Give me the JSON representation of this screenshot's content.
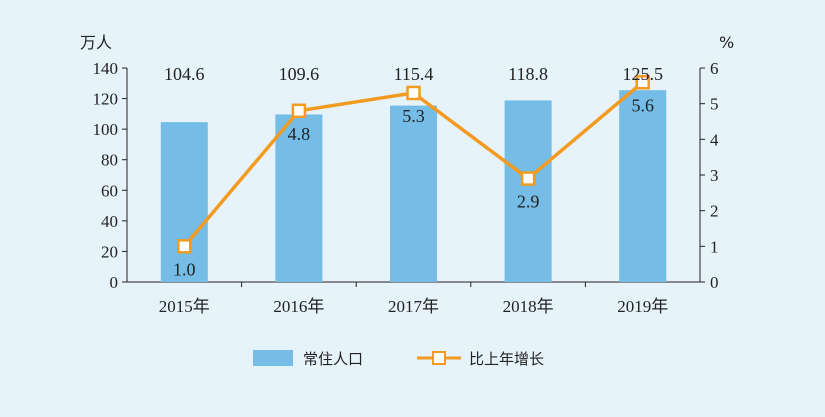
{
  "chart_data": {
    "type": "bar",
    "categories": [
      "2015年",
      "2016年",
      "2017年",
      "2018年",
      "2019年"
    ],
    "series": [
      {
        "name": "常住人口",
        "type": "bar",
        "axis": "left",
        "values": [
          104.6,
          109.6,
          115.4,
          118.8,
          125.5
        ],
        "labels": [
          "104.6",
          "109.6",
          "115.4",
          "118.8",
          "125.5"
        ]
      },
      {
        "name": "比上年增长",
        "type": "line",
        "axis": "right",
        "values": [
          1.0,
          4.8,
          5.3,
          2.9,
          5.6
        ],
        "labels": [
          "1.0",
          "4.8",
          "5.3",
          "2.9",
          "5.6"
        ]
      }
    ],
    "ylabel": "万人",
    "y2label": "%",
    "ylim": [
      0,
      140
    ],
    "y2lim": [
      0,
      6
    ],
    "yticks": [
      "0",
      "20",
      "40",
      "60",
      "80",
      "100",
      "120",
      "140"
    ],
    "y2ticks": [
      "0",
      "1",
      "2",
      "3",
      "4",
      "5",
      "6"
    ],
    "grid": false,
    "legend_position": "bottom-center",
    "colors": {
      "bar": "#75bde6",
      "line": "#f39a20",
      "marker_fill": "#ffffff",
      "background": "#e6f3fb",
      "axis": "#222222"
    }
  }
}
